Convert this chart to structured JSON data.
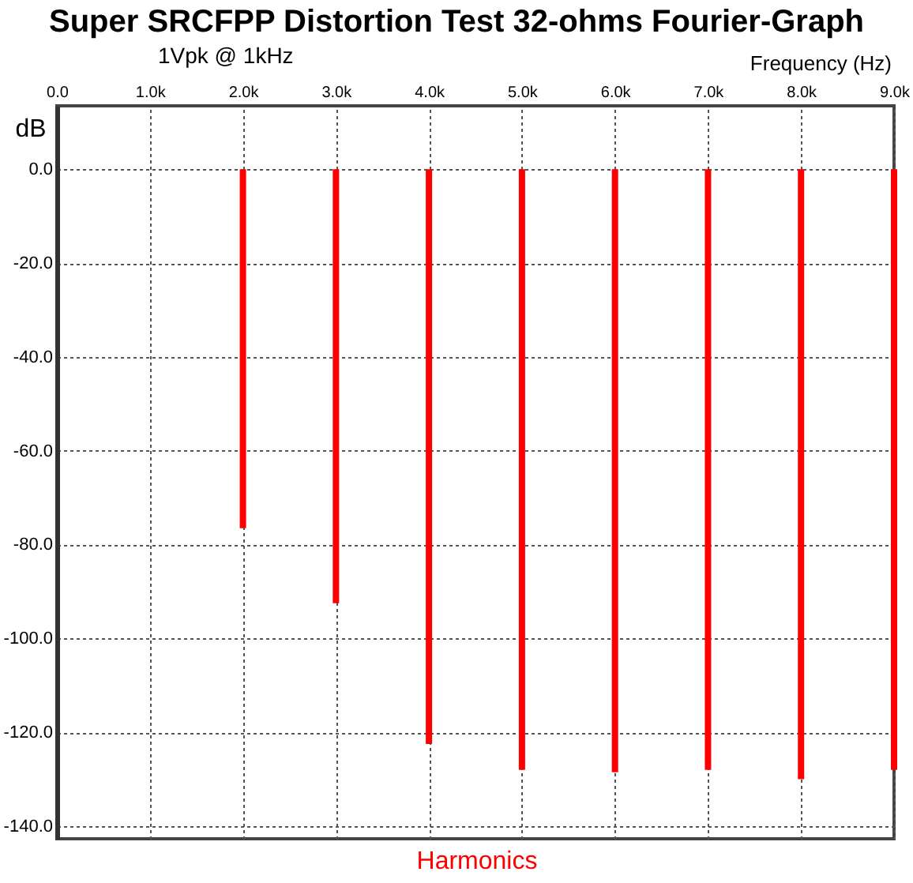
{
  "chart_data": {
    "type": "bar",
    "title": "Super SRCFPP Distortion Test 32-ohms Fourier-Graph",
    "subtitle": "1Vpk @ 1kHz",
    "xlabel": "Frequency  (Hz)",
    "ylabel": "dB",
    "annotations": [
      "Harmonics"
    ],
    "x": [
      1000,
      2000,
      3000,
      4000,
      5000,
      6000,
      7000,
      8000,
      9000
    ],
    "series": [
      {
        "color": "#ff0000",
        "values": [
          0,
          -76.5,
          -92.5,
          -122.5,
          -128,
          -128.5,
          -128,
          -130,
          -128
        ]
      }
    ],
    "xlim": [
      0,
      9000
    ],
    "xticks": [
      {
        "value": 0,
        "label": "0.0"
      },
      {
        "value": 1000,
        "label": "1.0k"
      },
      {
        "value": 2000,
        "label": "2.0k"
      },
      {
        "value": 3000,
        "label": "3.0k"
      },
      {
        "value": 4000,
        "label": "4.0k"
      },
      {
        "value": 5000,
        "label": "5.0k"
      },
      {
        "value": 6000,
        "label": "6.0k"
      },
      {
        "value": 7000,
        "label": "7.0k"
      },
      {
        "value": 8000,
        "label": "8.0k"
      },
      {
        "value": 9000,
        "label": "9.0k"
      }
    ],
    "ylim": [
      -142.7,
      13.5
    ],
    "yticks": [
      {
        "value": 0,
        "label": "0.0"
      },
      {
        "value": -20,
        "label": "-20.0"
      },
      {
        "value": -40,
        "label": "-40.0"
      },
      {
        "value": -60,
        "label": "-60.0"
      },
      {
        "value": -80,
        "label": "-80.0"
      },
      {
        "value": -100,
        "label": "-100.0"
      },
      {
        "value": -120,
        "label": "-120.0"
      },
      {
        "value": -140,
        "label": "-140.0"
      }
    ],
    "grid": true
  }
}
